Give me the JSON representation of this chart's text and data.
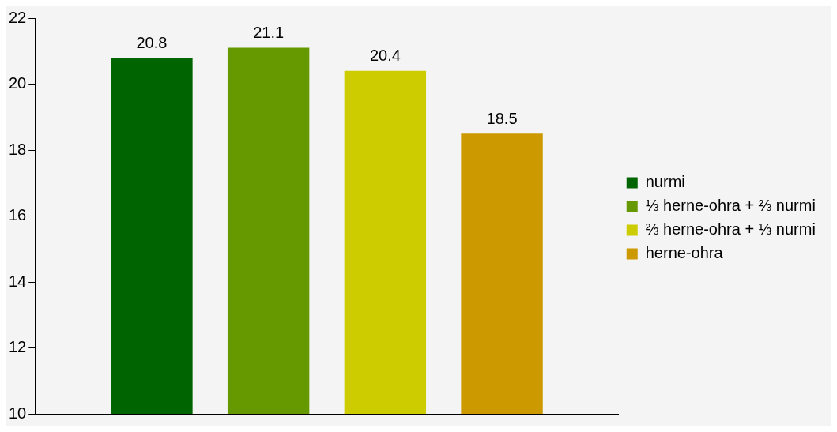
{
  "chart_data": {
    "type": "bar",
    "categories": [
      null
    ],
    "series": [
      {
        "name": "nurmi",
        "color": "#006400",
        "values": [
          20.8
        ]
      },
      {
        "name": "⅓ herne-ohra + ⅔ nurmi",
        "color": "#669900",
        "values": [
          21.1
        ]
      },
      {
        "name": "⅔ herne-ohra + ⅓ nurmi",
        "color": "#cccc00",
        "values": [
          20.4
        ]
      },
      {
        "name": "herne-ohra",
        "color": "#cc9900",
        "values": [
          18.5
        ]
      }
    ],
    "ylim": [
      10,
      22
    ],
    "yticks": [
      10,
      12,
      14,
      16,
      18,
      20,
      22
    ],
    "data_labels": true,
    "legend": "right"
  }
}
